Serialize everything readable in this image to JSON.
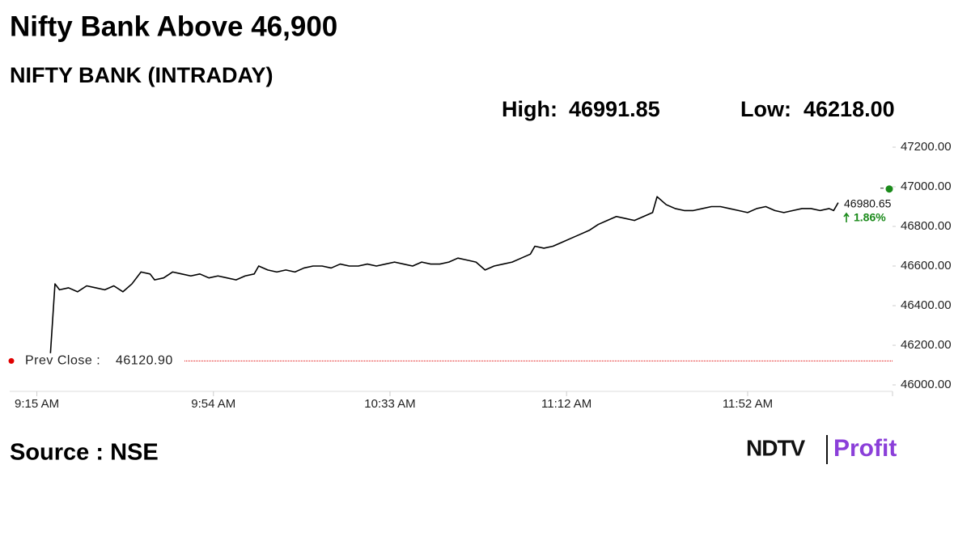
{
  "chart_data": {
    "type": "line",
    "title": "Nifty Bank Above 46,900",
    "subtitle": "NIFTY BANK (INTRADAY)",
    "high": {
      "label": "High:",
      "value": 46991.85,
      "value_label": "46991.85"
    },
    "low": {
      "label": "Low:",
      "value": 46218,
      "value_label": "46218.00"
    },
    "reference_line": {
      "label": "Prev Close :",
      "value": 46120.9,
      "value_label": "46120.90",
      "color": "#e00000"
    },
    "last_value": 46980.65,
    "last_value_label": "46980.65",
    "change": 1.86,
    "change_label": "1.86%",
    "source": "Source : NSE",
    "logo": [
      "NDTV",
      "Profit"
    ],
    "xlim": [
      549,
      744
    ],
    "xticks": [
      {
        "value": 555,
        "label": "9:15 AM"
      },
      {
        "value": 594,
        "label": "9:54 AM"
      },
      {
        "value": 633,
        "label": "10:33 AM"
      },
      {
        "value": 672,
        "label": "11:12 AM"
      },
      {
        "value": 712,
        "label": "11:52 AM"
      }
    ],
    "ylim": [
      46000,
      47200
    ],
    "yticks": [
      {
        "value": 46000,
        "label": "46000.00"
      },
      {
        "value": 46200,
        "label": "46200.00"
      },
      {
        "value": 46400,
        "label": "46400.00"
      },
      {
        "value": 46600,
        "label": "46600.00"
      },
      {
        "value": 46800,
        "label": "46800.00"
      },
      {
        "value": 47000,
        "label": "47000.00"
      },
      {
        "value": 47200,
        "label": "47200.00"
      }
    ],
    "series": [
      {
        "name": "NIFTY BANK",
        "color": "#000000",
        "x": [
          558,
          559,
          560,
          562,
          564,
          566,
          568,
          570,
          572,
          574,
          576,
          578,
          580,
          581,
          583,
          585,
          587,
          589,
          591,
          593,
          595,
          597,
          599,
          601,
          603,
          604,
          606,
          608,
          610,
          612,
          614,
          616,
          618,
          620,
          622,
          624,
          626,
          628,
          630,
          632,
          634,
          636,
          638,
          640,
          642,
          644,
          646,
          648,
          650,
          652,
          654,
          656,
          658,
          660,
          662,
          664,
          665,
          667,
          669,
          671,
          673,
          675,
          677,
          679,
          681,
          683,
          685,
          687,
          689,
          691,
          692,
          694,
          696,
          698,
          700,
          702,
          704,
          706,
          708,
          710,
          712,
          714,
          716,
          718,
          720,
          722,
          724,
          726,
          728,
          730,
          731,
          732
        ],
        "values": [
          46160,
          46510,
          46480,
          46490,
          46470,
          46500,
          46490,
          46480,
          46500,
          46470,
          46510,
          46570,
          46560,
          46530,
          46540,
          46570,
          46560,
          46550,
          46560,
          46540,
          46550,
          46540,
          46530,
          46550,
          46560,
          46600,
          46580,
          46570,
          46580,
          46570,
          46590,
          46600,
          46600,
          46590,
          46610,
          46600,
          46600,
          46610,
          46600,
          46610,
          46620,
          46610,
          46600,
          46620,
          46610,
          46610,
          46620,
          46640,
          46630,
          46620,
          46580,
          46600,
          46610,
          46620,
          46640,
          46660,
          46700,
          46690,
          46700,
          46720,
          46740,
          46760,
          46780,
          46810,
          46830,
          46850,
          46840,
          46830,
          46850,
          46870,
          46950,
          46910,
          46890,
          46880,
          46880,
          46890,
          46900,
          46900,
          46890,
          46880,
          46870,
          46890,
          46900,
          46880,
          46870,
          46880,
          46890,
          46890,
          46880,
          46890,
          46880,
          46920
        ]
      }
    ],
    "marker_color": "#1a8a1a",
    "change_color": "#1a8a1a"
  }
}
